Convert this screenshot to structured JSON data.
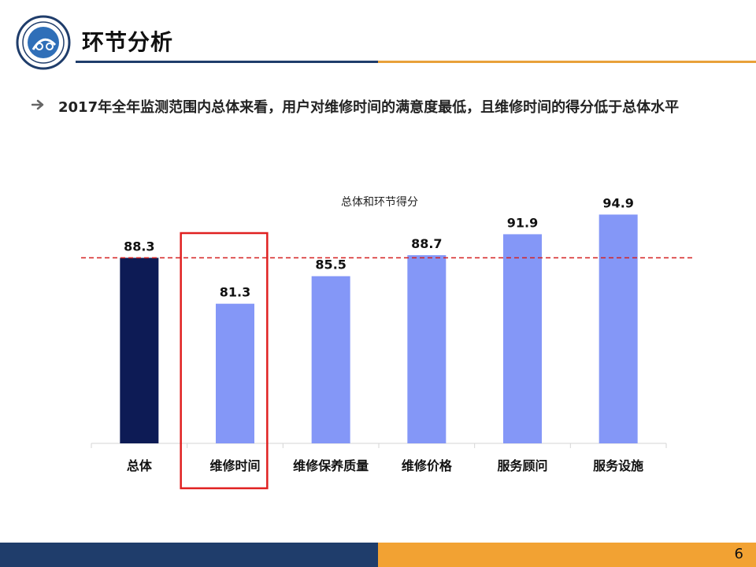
{
  "slide": {
    "title": "环节分析",
    "bullet": "2017年全年监测范围内总体来看，用户对维修时间的满意度最低，且维修时间的得分低于总体水平",
    "page_number": "6"
  },
  "colors": {
    "accent_dark": "#1f3d6b",
    "accent_orange": "#f2a233",
    "bar_total": "#0d1b55",
    "bar_item": "#8497f7",
    "reference_line": "#d42020",
    "highlight_box": "#e02020"
  },
  "chart_data": {
    "type": "bar",
    "title": "总体和环节得分",
    "categories": [
      "总体",
      "维修时间",
      "维修保养质量",
      "维修价格",
      "服务顾问",
      "服务设施"
    ],
    "values": [
      88.3,
      81.3,
      85.5,
      88.7,
      91.9,
      94.9
    ],
    "data_labels": [
      "88.3",
      "81.3",
      "85.5",
      "88.7",
      "91.9",
      "94.9"
    ],
    "ylim": [
      60,
      100
    ],
    "reference_line": 88.3,
    "highlight_category": "维修时间",
    "grid": false,
    "legend": "none"
  }
}
